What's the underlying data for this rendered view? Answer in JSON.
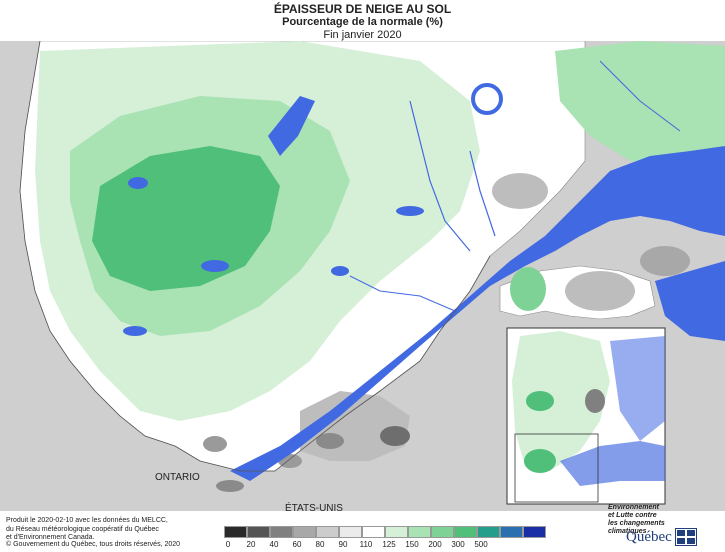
{
  "title": "ÉPAISSEUR DE NEIGE AU SOL",
  "subtitle": "Pourcentage de la normale (%)",
  "period": "Fin janvier 2020",
  "labels": {
    "ontario": "ONTARIO",
    "usa": "ÉTATS-UNIS"
  },
  "credits": {
    "line1": "Produit le 2020-02-10 avec les données du MELCC,",
    "line2": "du Réseau météorologique coopératif du Québec",
    "line3": "et d'Environnement Canada.",
    "copyright": "© Gouvernement du Québec, tous droits réservés, 2020"
  },
  "legend": {
    "colors": [
      "#2a2a2a",
      "#555555",
      "#808080",
      "#a8a8a8",
      "#cccccc",
      "#ebebeb",
      "#ffffff",
      "#d6f0d8",
      "#a9e2b3",
      "#7fd296",
      "#4fbf7a",
      "#259f8c",
      "#2a6fb0",
      "#1a2fa6"
    ],
    "ticks": [
      "0",
      "20",
      "40",
      "60",
      "80",
      "90",
      "110",
      "125",
      "150",
      "200",
      "300",
      "500"
    ]
  },
  "organization": {
    "line1": "Environnement",
    "line2": "et Lutte contre",
    "line3": "les changements",
    "line4": "climatiques",
    "wordmark": "Québec"
  },
  "map_colors": {
    "water": "#4169e1",
    "background": "#cfcfcf",
    "green_light": "#d6f0d8",
    "green_mid": "#a9e2b3",
    "green_dark": "#4fbf7a"
  }
}
